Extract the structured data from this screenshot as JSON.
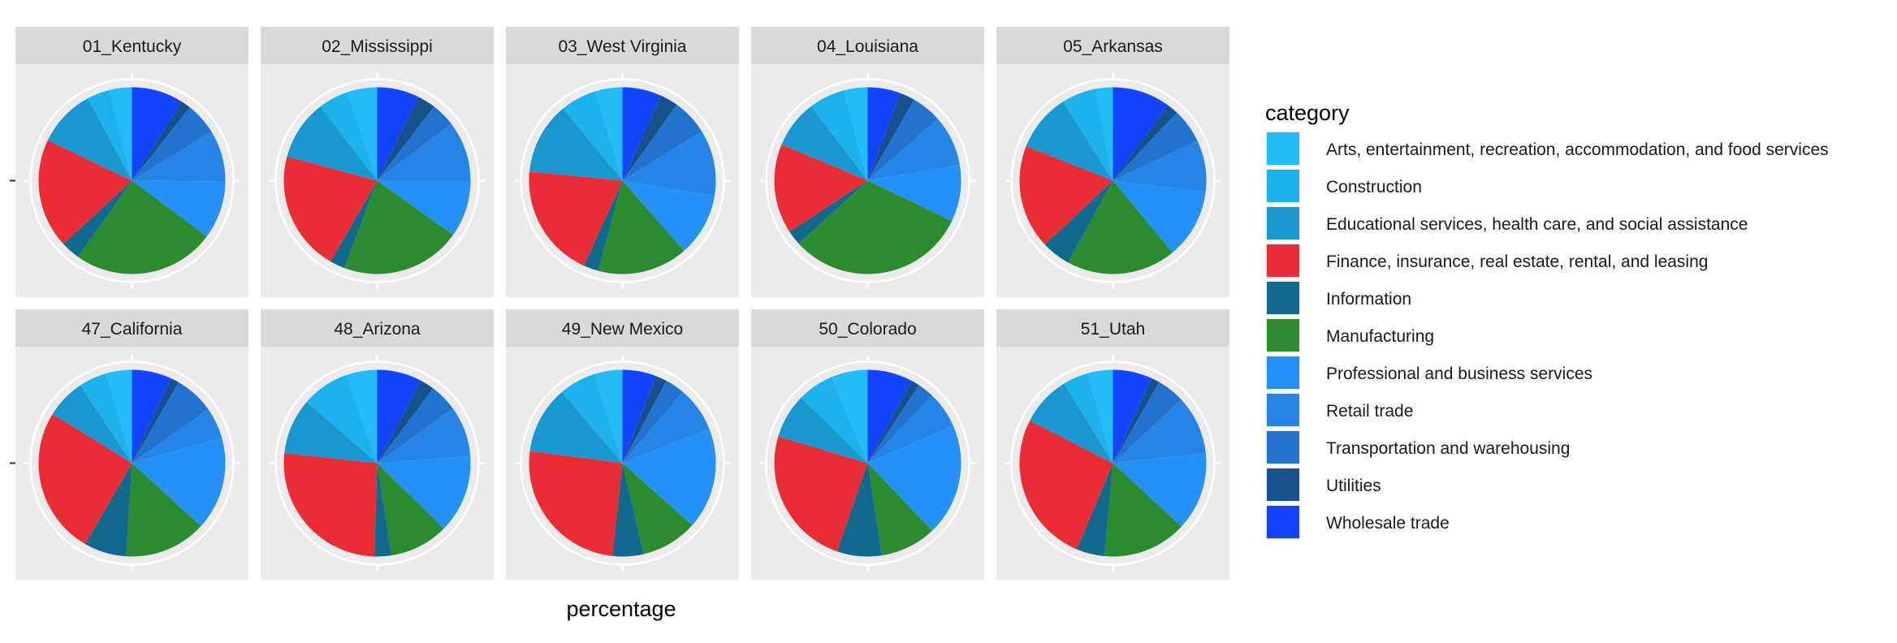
{
  "chart_data": {
    "type": "pie",
    "xlabel": "percentage",
    "legend": {
      "title": "category",
      "position": "right"
    },
    "categories": [
      "Arts, entertainment, recreation, accommodation, and food services",
      "Construction",
      "Educational services, health care, and social assistance",
      "Finance, insurance, real estate, rental, and leasing",
      "Information",
      "Manufacturing",
      "Professional and business services",
      "Retail trade",
      "Transportation and warehousing",
      "Utilities",
      "Wholesale trade"
    ],
    "colors": [
      "#22bcf6",
      "#1cb2ec",
      "#1898cf",
      "#ea2d35",
      "#0f6a8e",
      "#2a8c2e",
      "#2391f7",
      "#2684e6",
      "#2273cd",
      "#15528b",
      "#1244fc"
    ],
    "panels": [
      {
        "name": "01_Kentucky",
        "values": [
          3.5,
          3.5,
          9,
          17,
          3,
          22,
          9,
          8,
          5,
          1.5,
          8
        ]
      },
      {
        "name": "02_Mississippi",
        "values": [
          5,
          5,
          10,
          20,
          2.5,
          20,
          9.5,
          10,
          4,
          3,
          7
        ]
      },
      {
        "name": "03_West Virginia",
        "values": [
          4.5,
          6,
          12,
          19,
          2.5,
          15,
          10.5,
          11,
          6,
          3,
          6.5
        ]
      },
      {
        "name": "04_Louisiana",
        "values": [
          4,
          6,
          8,
          15,
          2.5,
          30,
          9.5,
          8.5,
          5,
          2.5,
          5.5
        ]
      },
      {
        "name": "05_Arkansas",
        "values": [
          3,
          6,
          10,
          18,
          5,
          19,
          12,
          9,
          6,
          2,
          10
        ]
      },
      {
        "name": "47_California",
        "values": [
          4.5,
          5,
          7,
          26,
          7.5,
          14.5,
          16.5,
          5.5,
          7,
          1.5,
          7
        ]
      },
      {
        "name": "48_Arizona",
        "values": [
          5.5,
          8.5,
          10,
          27,
          3,
          10.5,
          14,
          9,
          5,
          2.5,
          8
        ]
      },
      {
        "name": "49_New Mexico",
        "values": [
          5,
          6.5,
          12,
          26,
          5.5,
          10,
          18,
          8,
          3.5,
          2,
          6
        ]
      },
      {
        "name": "50_Colorado",
        "values": [
          6.5,
          6.5,
          8,
          25,
          8,
          10,
          20,
          6.5,
          3,
          1.5,
          8
        ]
      },
      {
        "name": "51_Utah",
        "values": [
          4.5,
          4.5,
          9,
          27,
          5,
          15,
          14,
          10.5,
          5,
          1.5,
          7
        ]
      }
    ]
  }
}
